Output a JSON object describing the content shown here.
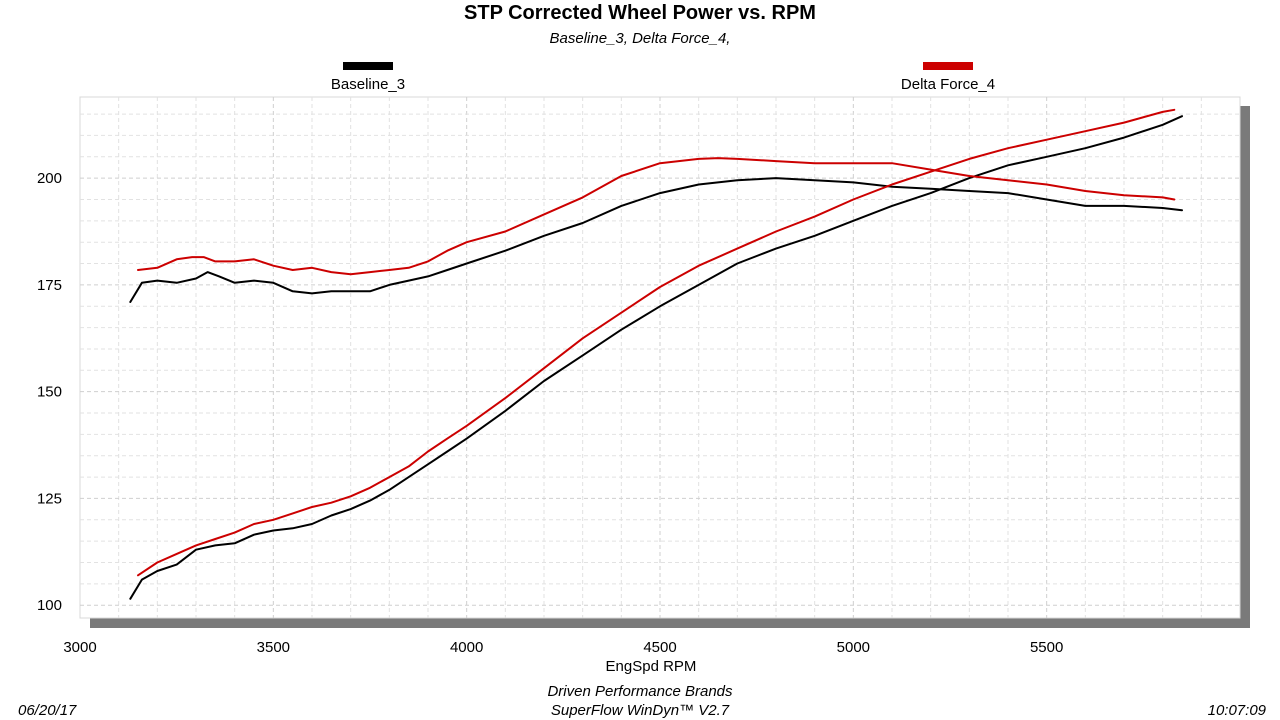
{
  "chart_data": {
    "type": "line",
    "title": "STP Corrected Wheel Power vs. RPM",
    "subtitle": "Baseline_3, Delta Force_4,",
    "xlabel": "EngSpd  RPM",
    "ylabel": "",
    "xlim": [
      3000,
      6000
    ],
    "ylim": [
      97,
      219
    ],
    "xticks": [
      3000,
      3500,
      4000,
      4500,
      5000,
      5500
    ],
    "yticks": [
      100,
      125,
      150,
      175,
      200
    ],
    "grid": true,
    "legend_position": "top",
    "series": [
      {
        "name": "Baseline_3",
        "color": "#000000",
        "curves": [
          {
            "quantity": "torque",
            "x": [
              3130,
              3160,
              3200,
              3250,
              3300,
              3330,
              3360,
              3400,
              3450,
              3500,
              3550,
              3600,
              3650,
              3700,
              3750,
              3800,
              3850,
              3900,
              3950,
              4000,
              4100,
              4200,
              4300,
              4400,
              4500,
              4600,
              4700,
              4800,
              4900,
              5000,
              5100,
              5200,
              5300,
              5400,
              5500,
              5600,
              5700,
              5800,
              5850
            ],
            "y": [
              171,
              175.5,
              176,
              175.5,
              176.5,
              178,
              177,
              175.5,
              176,
              175.5,
              173.5,
              173,
              173.5,
              173.5,
              173.5,
              175,
              176,
              177,
              178.5,
              180,
              183,
              186.5,
              189.5,
              193.5,
              196.5,
              198.5,
              199.5,
              200,
              199.5,
              199,
              198,
              197.5,
              197,
              196.5,
              195,
              193.5,
              193.5,
              193,
              192.5
            ]
          },
          {
            "quantity": "power",
            "x": [
              3130,
              3160,
              3200,
              3250,
              3300,
              3350,
              3400,
              3450,
              3500,
              3550,
              3600,
              3650,
              3700,
              3750,
              3800,
              3850,
              3900,
              3950,
              4000,
              4100,
              4200,
              4300,
              4400,
              4500,
              4600,
              4700,
              4800,
              4900,
              5000,
              5100,
              5200,
              5300,
              5400,
              5500,
              5600,
              5700,
              5800,
              5850
            ],
            "y": [
              101.5,
              106,
              108,
              109.5,
              113,
              114,
              114.5,
              116.5,
              117.5,
              118,
              119,
              121,
              122.5,
              124.5,
              127,
              130,
              133,
              136,
              139,
              145.5,
              152.5,
              158.5,
              164.5,
              170,
              175,
              180,
              183.5,
              186.5,
              190,
              193.5,
              196.5,
              200,
              203,
              205,
              207,
              209.5,
              212.5,
              214.5
            ]
          }
        ]
      },
      {
        "name": "Delta Force_4",
        "color": "#cc0000",
        "curves": [
          {
            "quantity": "torque",
            "x": [
              3150,
              3200,
              3250,
              3290,
              3320,
              3350,
              3400,
              3450,
              3500,
              3550,
              3600,
              3650,
              3700,
              3750,
              3800,
              3850,
              3900,
              3950,
              4000,
              4100,
              4200,
              4300,
              4400,
              4500,
              4600,
              4650,
              4700,
              4800,
              4900,
              5000,
              5100,
              5200,
              5300,
              5400,
              5500,
              5600,
              5700,
              5800,
              5830
            ],
            "y": [
              178.5,
              179,
              181,
              181.5,
              181.5,
              180.5,
              180.5,
              181,
              179.5,
              178.5,
              179,
              178,
              177.5,
              178,
              178.5,
              179,
              180.5,
              183,
              185,
              187.5,
              191.5,
              195.5,
              200.5,
              203.5,
              204.5,
              204.7,
              204.5,
              204,
              203.5,
              203.5,
              203.5,
              202,
              200.5,
              199.5,
              198.5,
              197,
              196,
              195.5,
              195
            ]
          },
          {
            "quantity": "power",
            "x": [
              3150,
              3200,
              3250,
              3300,
              3350,
              3400,
              3450,
              3500,
              3550,
              3600,
              3650,
              3700,
              3750,
              3800,
              3850,
              3900,
              3950,
              4000,
              4100,
              4200,
              4300,
              4400,
              4500,
              4600,
              4700,
              4800,
              4900,
              5000,
              5100,
              5200,
              5300,
              5400,
              5500,
              5600,
              5700,
              5800,
              5830
            ],
            "y": [
              107,
              110,
              112,
              114,
              115.5,
              117,
              119,
              120,
              121.5,
              123,
              124,
              125.5,
              127.5,
              130,
              132.5,
              136,
              139,
              142,
              148.5,
              155.5,
              162.5,
              168.5,
              174.5,
              179.5,
              183.5,
              187.5,
              191,
              195,
              198.5,
              201.5,
              204.5,
              207,
              209,
              211,
              213,
              215.5,
              216
            ]
          }
        ]
      }
    ]
  },
  "footer": {
    "date": "06/20/17",
    "time": "10:07:09",
    "company": "Driven Performance Brands",
    "software": "SuperFlow WinDyn™  V2.7"
  }
}
